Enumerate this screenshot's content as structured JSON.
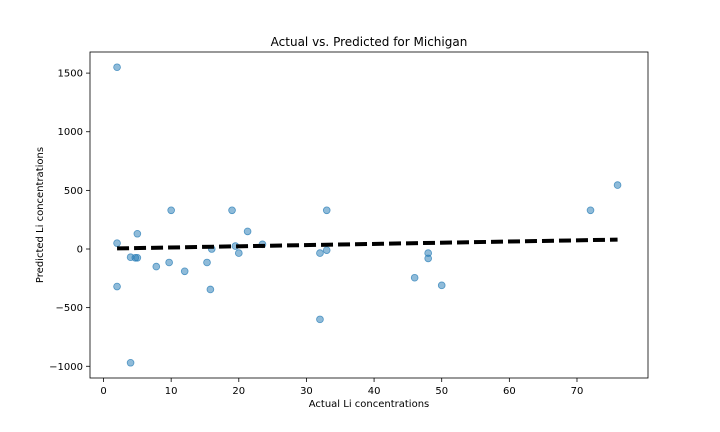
{
  "chart_data": {
    "type": "scatter",
    "title": "Actual vs. Predicted for Michigan",
    "xlabel": "Actual Li concentrations",
    "ylabel": "Predicted Li concentrations",
    "xlim": [
      -2,
      80.5
    ],
    "ylim": [
      -1100,
      1680
    ],
    "xticks": [
      0,
      10,
      20,
      30,
      40,
      50,
      60,
      70
    ],
    "yticks": [
      -1000,
      -500,
      0,
      500,
      1000,
      1500
    ],
    "grid": false,
    "colors": {
      "points": "#1f77b4",
      "fit_line": "#000000",
      "axes": "#000000"
    },
    "series": [
      {
        "points": [
          {
            "x": 2,
            "y": 1550
          },
          {
            "x": 2,
            "y": 50
          },
          {
            "x": 2,
            "y": -320
          },
          {
            "x": 4,
            "y": -970
          },
          {
            "x": 4,
            "y": -70
          },
          {
            "x": 4.7,
            "y": -75
          },
          {
            "x": 5,
            "y": -75
          },
          {
            "x": 5,
            "y": 130
          },
          {
            "x": 7.8,
            "y": -150
          },
          {
            "x": 9.7,
            "y": -115
          },
          {
            "x": 10,
            "y": 330
          },
          {
            "x": 12,
            "y": -190
          },
          {
            "x": 15.3,
            "y": -115
          },
          {
            "x": 15.8,
            "y": -345
          },
          {
            "x": 16,
            "y": 0
          },
          {
            "x": 19,
            "y": 330
          },
          {
            "x": 19.5,
            "y": 25
          },
          {
            "x": 20,
            "y": -35
          },
          {
            "x": 21.3,
            "y": 150
          },
          {
            "x": 23.5,
            "y": 40
          },
          {
            "x": 32,
            "y": -600
          },
          {
            "x": 32,
            "y": -35
          },
          {
            "x": 33,
            "y": 330
          },
          {
            "x": 33,
            "y": -10
          },
          {
            "x": 46,
            "y": -245
          },
          {
            "x": 48,
            "y": -35
          },
          {
            "x": 48,
            "y": -80
          },
          {
            "x": 50,
            "y": -310
          },
          {
            "x": 72,
            "y": 330
          },
          {
            "x": 76,
            "y": 545
          }
        ]
      }
    ],
    "fit_line": {
      "x": [
        2,
        76
      ],
      "y": [
        5,
        80
      ],
      "style": "dashed"
    }
  }
}
